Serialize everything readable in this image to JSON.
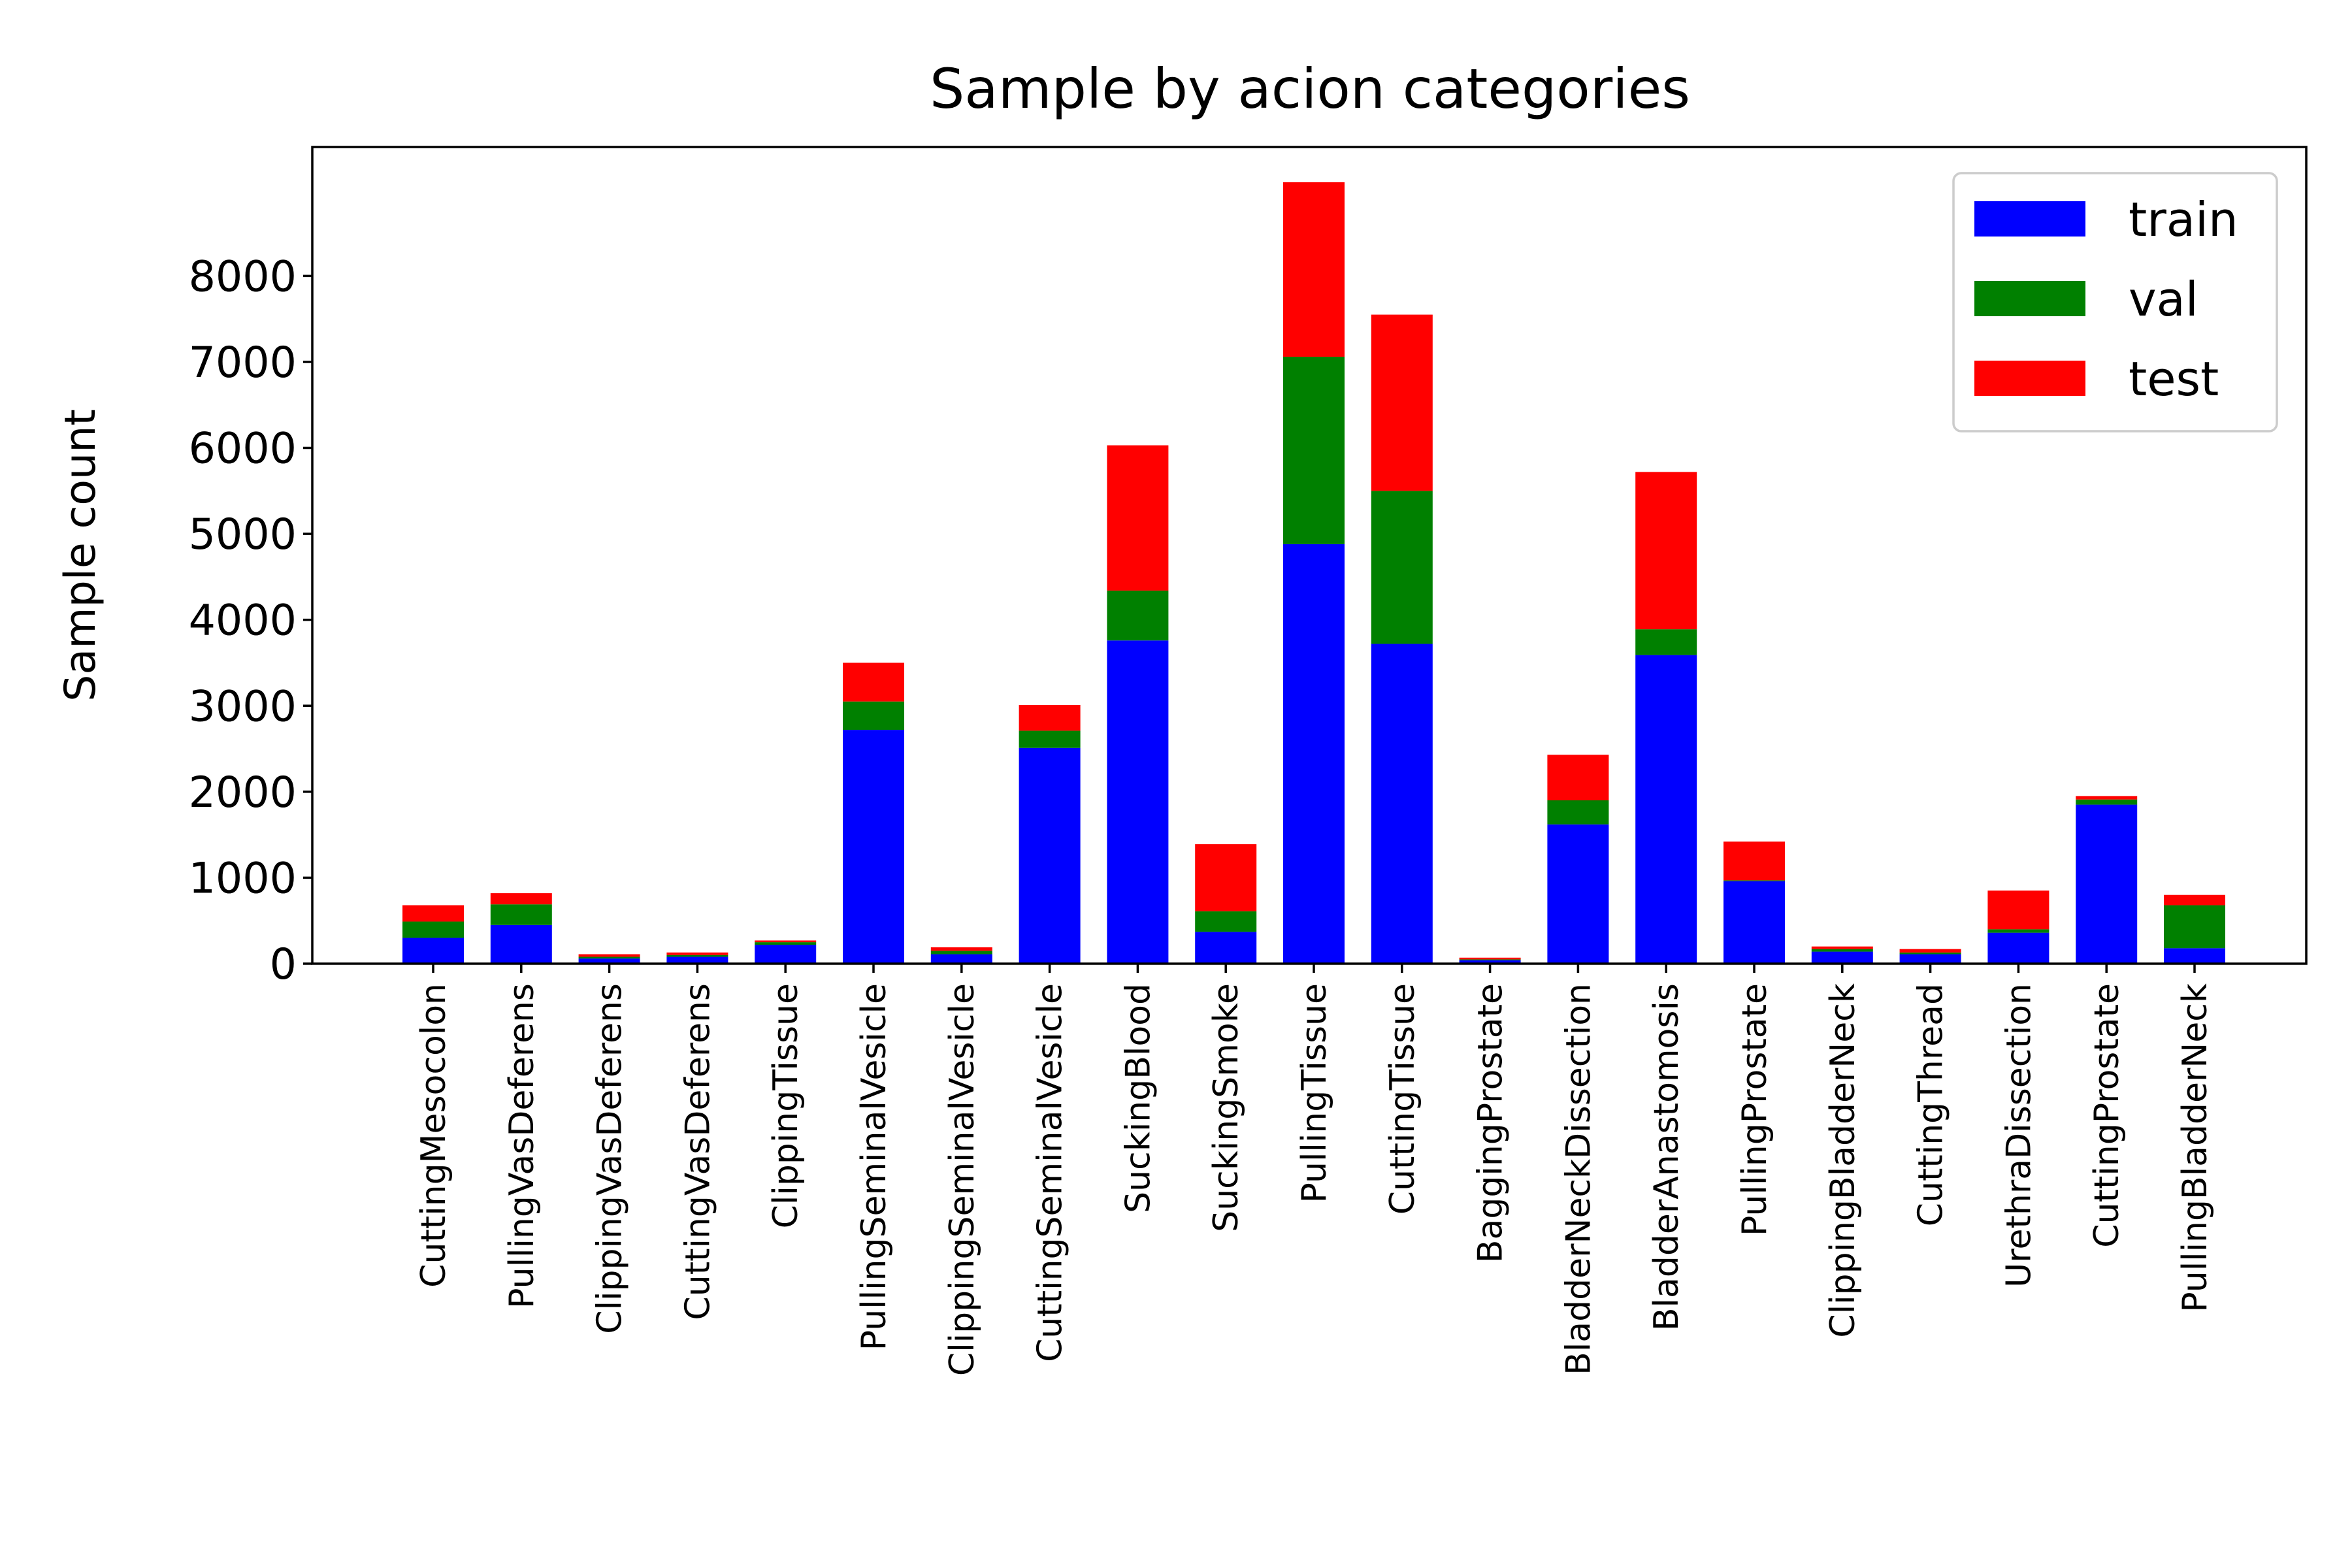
{
  "chart_data": {
    "type": "bar",
    "stacked": true,
    "title": "Sample by acion categories",
    "xlabel": "",
    "ylabel": "Sample count",
    "ylim": [
      0,
      9500
    ],
    "yticks": [
      0,
      1000,
      2000,
      3000,
      4000,
      5000,
      6000,
      7000,
      8000
    ],
    "grid": false,
    "legend_position": "top-right",
    "categories": [
      "CuttingMesocolon",
      "PullingVasDeferens",
      "ClippingVasDeferens",
      "CuttingVasDeferens",
      "ClippingTissue",
      "PullingSeminalVesicle",
      "ClippingSeminalVesicle",
      "CuttingSeminalVesicle",
      "SuckingBlood",
      "SuckingSmoke",
      "PullingTissue",
      "CuttingTissue",
      "BaggingProstate",
      "BladderNeckDissection",
      "BladderAnastomosis",
      "PullingProstate",
      "ClippingBladderNeck",
      "CuttingThread",
      "UrethraDissection",
      "CuttingProstate",
      "PullingBladderNeck"
    ],
    "series": [
      {
        "name": "train",
        "color": "#0000ff",
        "values": [
          300,
          450,
          60,
          80,
          220,
          2720,
          110,
          2510,
          3760,
          370,
          4880,
          3720,
          40,
          1620,
          3590,
          960,
          140,
          110,
          360,
          1850,
          180
        ]
      },
      {
        "name": "val",
        "color": "#008000",
        "values": [
          190,
          240,
          20,
          20,
          30,
          330,
          40,
          200,
          580,
          240,
          2180,
          1780,
          10,
          280,
          300,
          10,
          30,
          20,
          40,
          60,
          500
        ]
      },
      {
        "name": "test",
        "color": "#ff0000",
        "values": [
          190,
          130,
          30,
          30,
          20,
          450,
          40,
          300,
          1690,
          780,
          2030,
          2050,
          20,
          530,
          1830,
          450,
          30,
          40,
          450,
          40,
          120
        ]
      }
    ]
  }
}
